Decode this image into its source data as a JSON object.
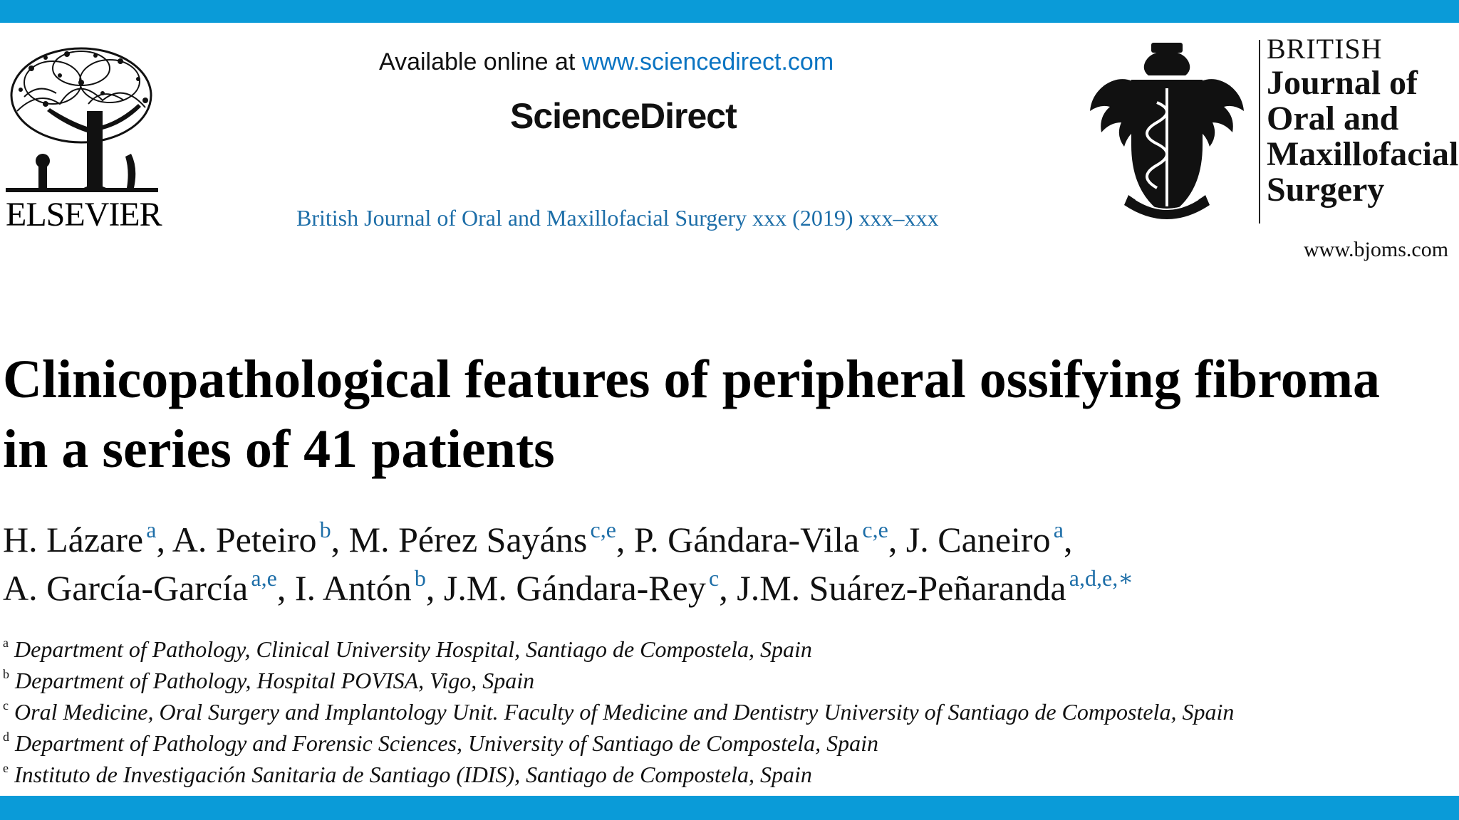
{
  "publisher": {
    "name": "ELSEVIER"
  },
  "header": {
    "available_prefix": "Available online at",
    "available_url": "www.sciencedirect.com",
    "platform": "ScienceDirect",
    "journal_citation": "British Journal of Oral and Maxillofacial Surgery xxx (2019) xxx–xxx"
  },
  "journal_brand": {
    "line1": "BRITISH",
    "line2": "Journal of",
    "line3": "Oral and",
    "line4": "Maxillofacial",
    "line5": "Surgery",
    "url": "www.bjoms.com"
  },
  "article": {
    "title_line1": "Clinicopathological features of peripheral ossifying fibroma",
    "title_line2": "in a series of 41 patients"
  },
  "authors": [
    {
      "name": "H. Lázare",
      "affil": "a",
      "sep": ", "
    },
    {
      "name": "A. Peteiro",
      "affil": "b",
      "sep": ", "
    },
    {
      "name": "M. Pérez Sayáns",
      "affil": "c,e",
      "sep": ", "
    },
    {
      "name": "P. Gándara-Vila",
      "affil": "c,e",
      "sep": ", "
    },
    {
      "name": "J. Caneiro",
      "affil": "a",
      "sep": ","
    },
    {
      "name": "A. García-García",
      "affil": "a,e",
      "sep": ", "
    },
    {
      "name": "I. Antón",
      "affil": "b",
      "sep": ", "
    },
    {
      "name": "J.M. Gándara-Rey",
      "affil": "c",
      "sep": ", "
    },
    {
      "name": "J.M. Suárez-Peñaranda",
      "affil": "a,d,e,∗",
      "sep": ""
    }
  ],
  "affiliations": [
    {
      "key": "a",
      "text": "Department of Pathology, Clinical University Hospital, Santiago de Compostela, Spain"
    },
    {
      "key": "b",
      "text": "Department of Pathology, Hospital POVISA, Vigo, Spain"
    },
    {
      "key": "c",
      "text": "Oral Medicine, Oral Surgery and Implantology Unit. Faculty of Medicine and Dentistry University of Santiago de Compostela, Spain"
    },
    {
      "key": "d",
      "text": "Department of Pathology and Forensic Sciences, University of Santiago de Compostela, Spain"
    },
    {
      "key": "e",
      "text": "Instituto de Investigación Sanitaria de Santiago (IDIS), Santiago de Compostela, Spain"
    }
  ],
  "colors": {
    "frame_bar": "#0a9bd8",
    "link": "#1d6ea8"
  }
}
